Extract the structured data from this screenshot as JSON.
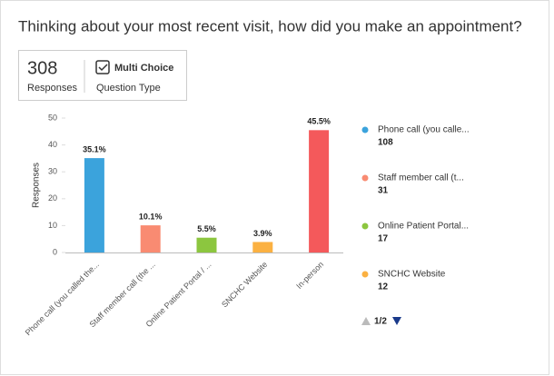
{
  "header": {
    "title": "Thinking about your most recent visit, how did you make an appointment?",
    "responses": "308",
    "responses_label": "Responses",
    "question_type": "Multi Choice",
    "question_type_label": "Question Type"
  },
  "chart_data": {
    "type": "bar",
    "y_label": "Responses",
    "categories": [
      "Phone call (you called the...",
      "Staff member call (the ...",
      "Online Patient Portal / ...",
      "SNCHC Website",
      "In-person"
    ],
    "values": [
      35.1,
      10.1,
      5.5,
      3.9,
      45.5
    ],
    "value_labels": [
      "35.1%",
      "10.1%",
      "5.5%",
      "3.9%",
      "45.5%"
    ],
    "colors": [
      "#3ba3dc",
      "#f98b72",
      "#8cc63f",
      "#fbb142",
      "#f4595b"
    ],
    "ylim": [
      0,
      50
    ],
    "yticks": [
      0,
      10,
      20,
      30,
      40,
      50
    ],
    "legend": [
      {
        "name": "Phone call (you calle...",
        "count": 108
      },
      {
        "name": "Staff member call (t...",
        "count": 31
      },
      {
        "name": "Online Patient Portal...",
        "count": 17
      },
      {
        "name": "SNCHC Website",
        "count": 12
      }
    ],
    "legend_page": "1/2"
  }
}
